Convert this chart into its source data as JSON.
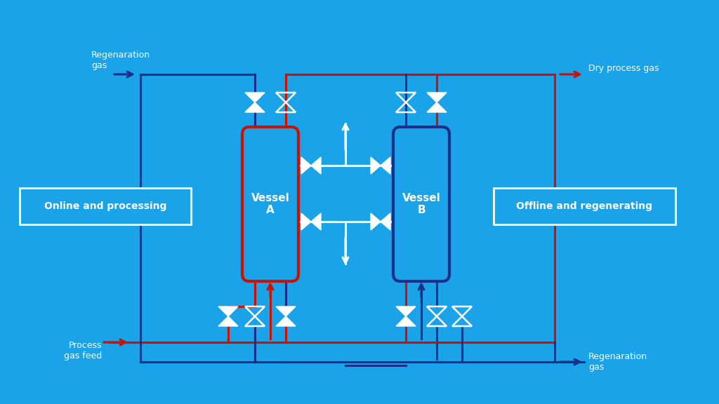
{
  "bg_color": "#1aa3e8",
  "red": "#cc1100",
  "dblue": "#1a2f8a",
  "white": "#ffffff",
  "figsize": [
    10.24,
    5.76
  ],
  "dpi": 100,
  "lw": 2.2,
  "vessel_lw": 3.0,
  "labels": {
    "regen_gas_top": "Regenaration\ngas",
    "dry_process_gas": "Dry process gas",
    "online_processing": "Online and processing",
    "offline_regenerating": "Offline and regenerating",
    "vessel_A": "Vessel\nA",
    "vessel_B": "Vessel\nB",
    "process_gas_feed": "Process\ngas feed",
    "regen_gas_bot": "Regenaration\ngas"
  }
}
